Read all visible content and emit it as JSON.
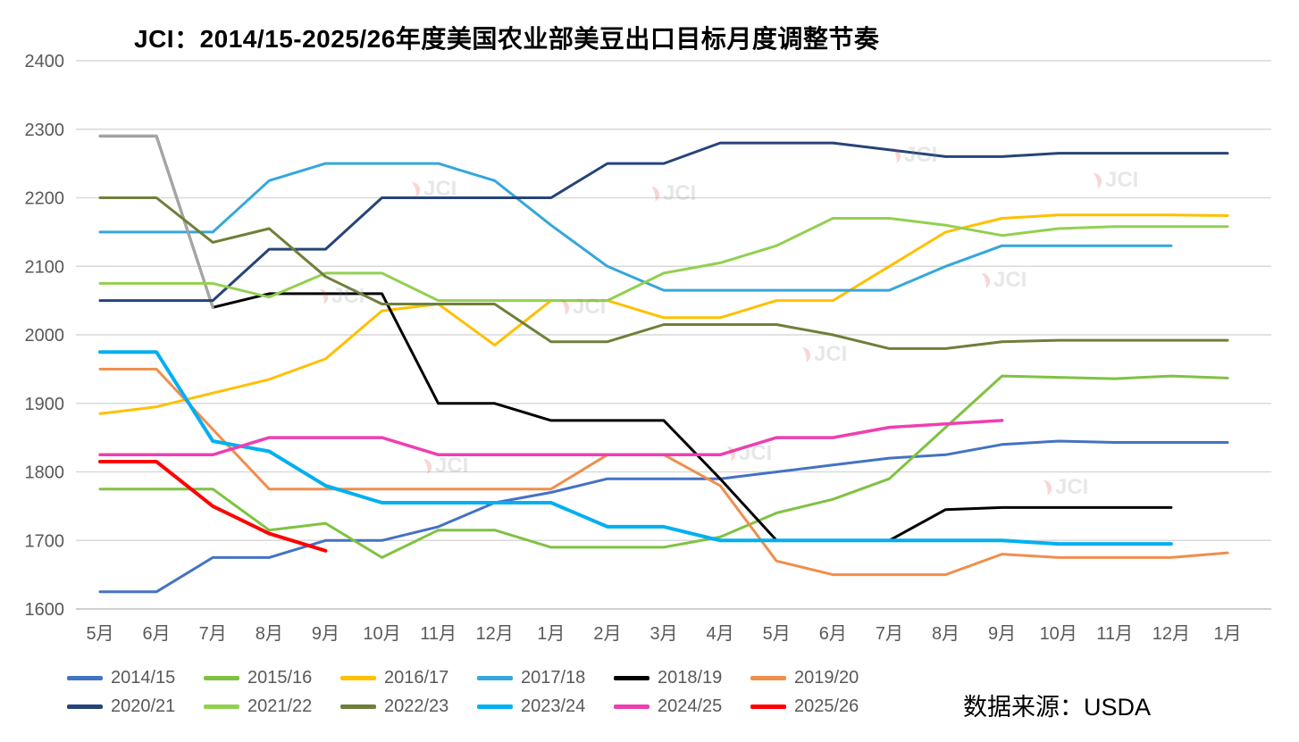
{
  "source": "数据来源：USDA",
  "watermark_text": "JCI",
  "chart_data": {
    "type": "line",
    "title": "JCI：2014/15-2025/26年度美国农业部美豆出口目标月度调整节奏",
    "xlabel": "",
    "ylabel": "",
    "grid": true,
    "legend_position": "bottom",
    "ylim": [
      1600,
      2400
    ],
    "y_ticks": [
      1600,
      1700,
      1800,
      1900,
      2000,
      2100,
      2200,
      2300,
      2400
    ],
    "x_labels": [
      "5月",
      "6月",
      "7月",
      "8月",
      "9月",
      "10月",
      "11月",
      "12月",
      "1月",
      "2月",
      "3月",
      "4月",
      "5月",
      "6月",
      "7月",
      "8月",
      "9月",
      "10月",
      "11月",
      "12月",
      "1月"
    ],
    "series": [
      {
        "name": "2014/15",
        "color": "#4472C4",
        "width": 3,
        "values": [
          1625,
          1625,
          1675,
          1675,
          1700,
          1700,
          1720,
          1755,
          1770,
          1790,
          1790,
          1790,
          1800,
          1810,
          1820,
          1825,
          1840,
          1845,
          1843,
          1843,
          1843
        ]
      },
      {
        "name": "2015/16",
        "color": "#7FC241",
        "width": 3,
        "values": [
          1775,
          1775,
          1775,
          1715,
          1725,
          1675,
          1715,
          1715,
          1690,
          1690,
          1690,
          1705,
          1740,
          1760,
          1790,
          1865,
          1940,
          1938,
          1936,
          1940,
          1937
        ]
      },
      {
        "name": "2016/17",
        "color": "#FFC000",
        "width": 3,
        "values": [
          1885,
          1895,
          1915,
          1935,
          1965,
          2035,
          2045,
          1985,
          2050,
          2050,
          2025,
          2025,
          2050,
          2050,
          2100,
          2150,
          2170,
          2175,
          2175,
          2175,
          2174
        ]
      },
      {
        "name": "2017/18",
        "color": "#35A7DB",
        "width": 3,
        "values": [
          2150,
          2150,
          2150,
          2225,
          2250,
          2250,
          2250,
          2225,
          2160,
          2100,
          2065,
          2065,
          2065,
          2065,
          2065,
          2100,
          2130,
          2130,
          2130,
          2130,
          null
        ]
      },
      {
        "name": "2018/19",
        "color": "#000000",
        "width": 3,
        "head_color": "#A6A6A6",
        "head_points": 2,
        "values": [
          2290,
          2290,
          2040,
          2060,
          2060,
          2060,
          1900,
          1900,
          1875,
          1875,
          1875,
          1790,
          1700,
          1700,
          1700,
          1745,
          1748,
          1748,
          1748,
          1748,
          null
        ]
      },
      {
        "name": "2019/20",
        "color": "#F08E4C",
        "width": 3,
        "values": [
          1950,
          1950,
          1862,
          1775,
          1775,
          1775,
          1775,
          1775,
          1775,
          1825,
          1825,
          1780,
          1670,
          1650,
          1650,
          1650,
          1680,
          1675,
          1675,
          1675,
          1682
        ]
      },
      {
        "name": "2020/21",
        "color": "#264478",
        "width": 3,
        "values": [
          2050,
          2050,
          2050,
          2125,
          2125,
          2200,
          2200,
          2200,
          2200,
          2250,
          2250,
          2280,
          2280,
          2280,
          2270,
          2260,
          2260,
          2265,
          2265,
          2265,
          2265
        ]
      },
      {
        "name": "2021/22",
        "color": "#92D050",
        "width": 3,
        "values": [
          2075,
          2075,
          2075,
          2055,
          2090,
          2090,
          2050,
          2050,
          2050,
          2050,
          2090,
          2105,
          2130,
          2170,
          2170,
          2160,
          2145,
          2155,
          2158,
          2158,
          2158
        ]
      },
      {
        "name": "2022/23",
        "color": "#6E7F3A",
        "width": 3,
        "values": [
          2200,
          2200,
          2135,
          2155,
          2085,
          2045,
          2045,
          2045,
          1990,
          1990,
          2015,
          2015,
          2015,
          2000,
          1980,
          1980,
          1990,
          1992,
          1992,
          1992,
          1992
        ]
      },
      {
        "name": "2023/24",
        "color": "#00B0F0",
        "width": 4,
        "values": [
          1975,
          1975,
          1845,
          1830,
          1780,
          1755,
          1755,
          1755,
          1755,
          1720,
          1720,
          1700,
          1700,
          1700,
          1700,
          1700,
          1700,
          1695,
          1695,
          1695,
          null
        ]
      },
      {
        "name": "2024/25",
        "color": "#EE3FB1",
        "width": 3.5,
        "values": [
          1825,
          1825,
          1825,
          1850,
          1850,
          1850,
          1825,
          1825,
          1825,
          1825,
          1825,
          1825,
          1850,
          1850,
          1865,
          1870,
          1875,
          null,
          null,
          null,
          null
        ]
      },
      {
        "name": "2025/26",
        "color": "#FF0000",
        "width": 4,
        "values": [
          1815,
          1815,
          1750,
          1710,
          1685,
          null,
          null,
          null,
          null,
          null,
          null,
          null,
          null,
          null,
          null,
          null,
          null,
          null,
          null,
          null,
          null
        ]
      }
    ]
  }
}
